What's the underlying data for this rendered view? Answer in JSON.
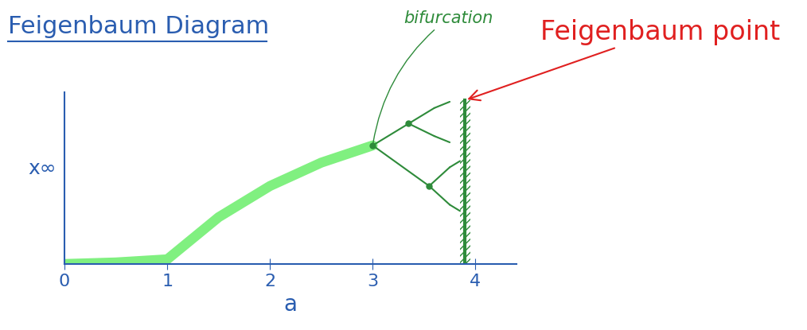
{
  "chart_data": {
    "type": "line",
    "title": "Feigenbaum Diagram",
    "x_label": "a",
    "y_label": "x∞",
    "xlim": [
      0,
      4.4
    ],
    "xticks": [
      0,
      1,
      2,
      3,
      4
    ],
    "ylim": [
      0,
      1.1
    ],
    "yticks": [],
    "tick_labels": "x",
    "grid": false,
    "series": [
      {
        "color": "#80f080",
        "values": [
          0,
          0.01,
          0.03,
          0.3,
          0.5,
          0.65,
          0.76
        ],
        "x": [
          0,
          0.5,
          1,
          1.5,
          2,
          2.5,
          3
        ]
      },
      {
        "color": "#2e8b3a",
        "values": [
          0.76,
          0.9
        ],
        "x": [
          3,
          3.35
        ]
      },
      {
        "color": "#2e8b3a",
        "values": [
          0.76,
          0.5
        ],
        "x": [
          3,
          3.55
        ]
      },
      {
        "color": "#2e8b3a",
        "values": [
          0.9,
          1.0
        ],
        "x": [
          3.35,
          3.6
        ]
      },
      {
        "color": "#2e8b3a",
        "values": [
          0.9,
          0.82
        ],
        "x": [
          3.35,
          3.6
        ]
      },
      {
        "color": "#2e8b3a",
        "values": [
          0.5,
          0.62
        ],
        "x": [
          3.55,
          3.75
        ]
      },
      {
        "color": "#2e8b3a",
        "values": [
          0.5,
          0.38
        ],
        "x": [
          3.55,
          3.75
        ]
      },
      {
        "color": "#2e8b3a",
        "values": [
          1.0,
          1.04
        ],
        "x": [
          3.6,
          3.75
        ]
      },
      {
        "color": "#2e8b3a",
        "values": [
          0.82,
          0.78
        ],
        "x": [
          3.6,
          3.75
        ]
      },
      {
        "color": "#2e8b3a",
        "values": [
          0.62,
          0.66
        ],
        "x": [
          3.75,
          3.85
        ]
      },
      {
        "color": "#2e8b3a",
        "values": [
          0.38,
          0.34
        ],
        "x": [
          3.75,
          3.85
        ]
      }
    ],
    "nodes": {
      "color": "#2e8b3a",
      "marker": "o",
      "x": [
        3,
        3.35,
        3.55
      ],
      "values": [
        0.76,
        0.9,
        0.5
      ]
    },
    "chaos_band": {
      "color": "#2e8b3a",
      "x": 3.9,
      "values": [
        0,
        1.05
      ]
    },
    "annotations": [
      {
        "text": "bifurcation",
        "x": 3,
        "y": 0.76,
        "color": "#2e8b3a"
      },
      {
        "text": "Feigenbaum point",
        "x": 3.9,
        "y": 1.05,
        "color": "#e02020"
      }
    ]
  }
}
